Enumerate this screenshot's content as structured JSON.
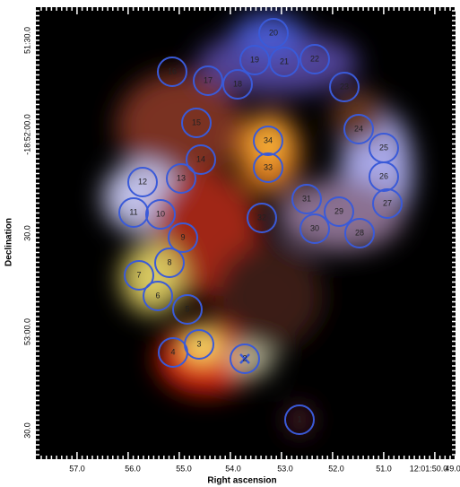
{
  "axes": {
    "x_label": "Right ascension",
    "y_label": "Declination",
    "x_tick_labels": [
      "57.0",
      "56.0",
      "55.0",
      "54.0",
      "53.0",
      "52.0",
      "51.0",
      "12:01:50.0",
      "49.0"
    ],
    "y_tick_labels": [
      "51:30.0",
      "-18:52:00.0",
      "30.0",
      "53:00.0",
      "30.0"
    ]
  },
  "sources": [
    {
      "label": "1"
    },
    {
      "label": "2"
    },
    {
      "label": "3"
    },
    {
      "label": "4"
    },
    {
      "label": "5"
    },
    {
      "label": "6"
    },
    {
      "label": "7"
    },
    {
      "label": "8"
    },
    {
      "label": "9"
    },
    {
      "label": "10"
    },
    {
      "label": "11"
    },
    {
      "label": "12"
    },
    {
      "label": "13"
    },
    {
      "label": "14"
    },
    {
      "label": "15"
    },
    {
      "label": "16"
    },
    {
      "label": "17"
    },
    {
      "label": "18"
    },
    {
      "label": "19"
    },
    {
      "label": "20"
    },
    {
      "label": "21"
    },
    {
      "label": "22"
    },
    {
      "label": "23"
    },
    {
      "label": "24"
    },
    {
      "label": "25"
    },
    {
      "label": "26"
    },
    {
      "label": "27"
    },
    {
      "label": "28"
    },
    {
      "label": "29"
    },
    {
      "label": "30"
    },
    {
      "label": "31"
    },
    {
      "label": "32"
    },
    {
      "label": "33"
    },
    {
      "label": "34"
    }
  ]
}
